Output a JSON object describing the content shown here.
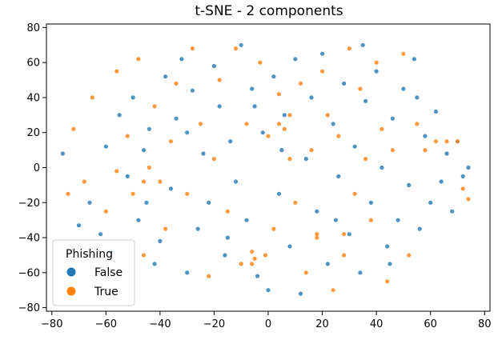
{
  "chart_data": {
    "type": "scatter",
    "title": "t-SNE - 2 components",
    "xlabel": "",
    "ylabel": "",
    "xlim": [
      -82,
      82
    ],
    "ylim": [
      -82,
      82
    ],
    "x_ticks": [
      -80,
      -60,
      -40,
      -20,
      0,
      20,
      40,
      60,
      80
    ],
    "y_ticks": [
      -80,
      -60,
      -40,
      -20,
      0,
      20,
      40,
      60,
      80
    ],
    "x_tick_labels": [
      "−80",
      "−60",
      "−40",
      "−20",
      "0",
      "20",
      "40",
      "60",
      "80"
    ],
    "y_tick_labels": [
      "−80",
      "−60",
      "−40",
      "−20",
      "0",
      "20",
      "40",
      "60",
      "80"
    ],
    "grid": false,
    "legend": {
      "title": "Phishing",
      "placement": "lower-left",
      "entries": [
        "False",
        "True"
      ]
    },
    "series": [
      {
        "name": "False",
        "color": "#1f77b4",
        "points": [
          [
            -76,
            8
          ],
          [
            -70,
            -33
          ],
          [
            -66,
            -20
          ],
          [
            -62,
            -38
          ],
          [
            -58,
            -48
          ],
          [
            -55,
            30
          ],
          [
            -52,
            -5
          ],
          [
            -50,
            40
          ],
          [
            -48,
            -30
          ],
          [
            -46,
            10
          ],
          [
            -44,
            22
          ],
          [
            -42,
            -55
          ],
          [
            -40,
            -42
          ],
          [
            -38,
            52
          ],
          [
            -36,
            -12
          ],
          [
            -34,
            28
          ],
          [
            -32,
            62
          ],
          [
            -30,
            -60
          ],
          [
            -28,
            44
          ],
          [
            -26,
            -35
          ],
          [
            -24,
            8
          ],
          [
            -22,
            -20
          ],
          [
            -20,
            58
          ],
          [
            -18,
            35
          ],
          [
            -16,
            -50
          ],
          [
            -14,
            15
          ],
          [
            -12,
            -8
          ],
          [
            -10,
            70
          ],
          [
            -8,
            -30
          ],
          [
            -6,
            45
          ],
          [
            -4,
            -62
          ],
          [
            -2,
            20
          ],
          [
            0,
            -70
          ],
          [
            2,
            52
          ],
          [
            4,
            -15
          ],
          [
            6,
            30
          ],
          [
            8,
            -45
          ],
          [
            10,
            62
          ],
          [
            12,
            -72
          ],
          [
            14,
            5
          ],
          [
            16,
            40
          ],
          [
            18,
            -25
          ],
          [
            20,
            65
          ],
          [
            22,
            -55
          ],
          [
            24,
            25
          ],
          [
            26,
            -5
          ],
          [
            28,
            48
          ],
          [
            30,
            -38
          ],
          [
            32,
            12
          ],
          [
            34,
            -60
          ],
          [
            36,
            38
          ],
          [
            38,
            -20
          ],
          [
            40,
            55
          ],
          [
            42,
            0
          ],
          [
            44,
            -45
          ],
          [
            46,
            28
          ],
          [
            48,
            -30
          ],
          [
            50,
            45
          ],
          [
            52,
            -10
          ],
          [
            54,
            62
          ],
          [
            56,
            -35
          ],
          [
            58,
            18
          ],
          [
            60,
            -20
          ],
          [
            62,
            32
          ],
          [
            64,
            -8
          ],
          [
            66,
            8
          ],
          [
            68,
            -25
          ],
          [
            70,
            15
          ],
          [
            72,
            -5
          ],
          [
            74,
            0
          ],
          [
            -60,
            12
          ],
          [
            -45,
            -20
          ],
          [
            -30,
            20
          ],
          [
            -15,
            -40
          ],
          [
            5,
            10
          ],
          [
            25,
            -30
          ],
          [
            35,
            70
          ],
          [
            45,
            -55
          ],
          [
            55,
            40
          ],
          [
            -5,
            35
          ]
        ]
      },
      {
        "name": "True",
        "color": "#ff7f0e",
        "points": [
          [
            -74,
            -15
          ],
          [
            -72,
            22
          ],
          [
            -68,
            -8
          ],
          [
            -65,
            40
          ],
          [
            -60,
            -25
          ],
          [
            -56,
            55
          ],
          [
            -52,
            18
          ],
          [
            -50,
            -15
          ],
          [
            -48,
            62
          ],
          [
            -46,
            -50
          ],
          [
            -44,
            0
          ],
          [
            -42,
            35
          ],
          [
            -40,
            -8
          ],
          [
            -38,
            -35
          ],
          [
            -36,
            15
          ],
          [
            -34,
            48
          ],
          [
            -30,
            -15
          ],
          [
            -28,
            68
          ],
          [
            -25,
            25
          ],
          [
            -22,
            -62
          ],
          [
            -20,
            5
          ],
          [
            -18,
            50
          ],
          [
            -15,
            -25
          ],
          [
            -12,
            68
          ],
          [
            -10,
            -55
          ],
          [
            -8,
            25
          ],
          [
            -6,
            -48
          ],
          [
            -5,
            -52
          ],
          [
            -3,
            60
          ],
          [
            0,
            18
          ],
          [
            2,
            -35
          ],
          [
            4,
            42
          ],
          [
            6,
            22
          ],
          [
            8,
            5
          ],
          [
            10,
            -20
          ],
          [
            12,
            48
          ],
          [
            14,
            -60
          ],
          [
            16,
            10
          ],
          [
            18,
            -40
          ],
          [
            20,
            55
          ],
          [
            22,
            30
          ],
          [
            24,
            -70
          ],
          [
            26,
            18
          ],
          [
            28,
            -50
          ],
          [
            30,
            68
          ],
          [
            32,
            -15
          ],
          [
            34,
            45
          ],
          [
            36,
            5
          ],
          [
            38,
            -30
          ],
          [
            40,
            60
          ],
          [
            42,
            22
          ],
          [
            44,
            -65
          ],
          [
            46,
            10
          ],
          [
            50,
            65
          ],
          [
            52,
            -50
          ],
          [
            55,
            25
          ],
          [
            58,
            10
          ],
          [
            62,
            15
          ],
          [
            66,
            15
          ],
          [
            70,
            15
          ],
          [
            72,
            -12
          ],
          [
            74,
            -18
          ],
          [
            -56,
            -2
          ],
          [
            -46,
            -8
          ],
          [
            4,
            25
          ],
          [
            8,
            30
          ],
          [
            -6,
            -55
          ],
          [
            -1,
            -50
          ],
          [
            18,
            -38
          ],
          [
            28,
            -38
          ]
        ]
      }
    ]
  }
}
